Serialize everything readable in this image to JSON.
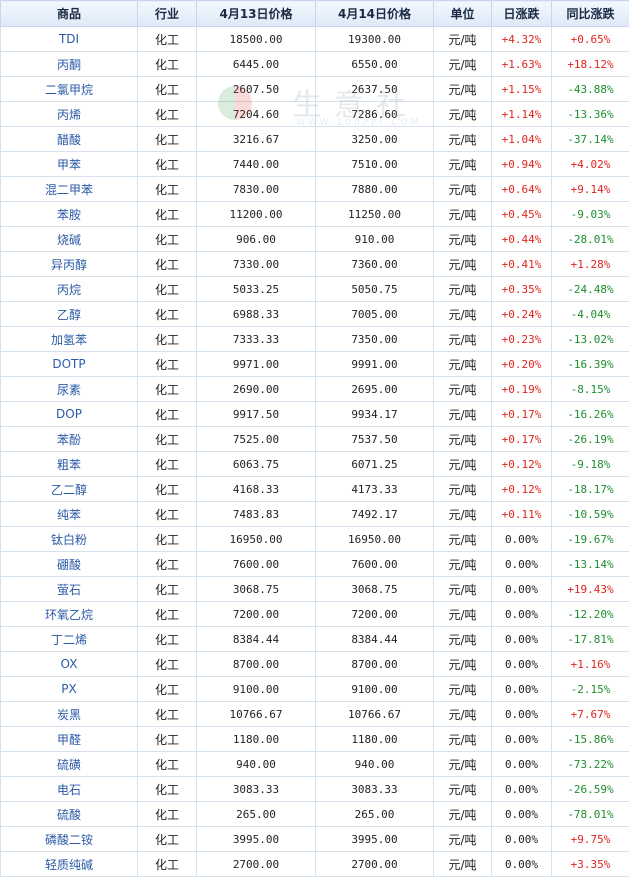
{
  "table": {
    "headers": [
      "商品",
      "行业",
      "4月13日价格",
      "4月14日价格",
      "单位",
      "日涨跌",
      "同比涨跌"
    ],
    "rows": [
      {
        "name": "TDI",
        "industry": "化工",
        "price_prev": "18500.00",
        "price_curr": "19300.00",
        "unit": "元/吨",
        "daily": "+4.32%",
        "yoy": "+0.65%"
      },
      {
        "name": "丙酮",
        "industry": "化工",
        "price_prev": "6445.00",
        "price_curr": "6550.00",
        "unit": "元/吨",
        "daily": "+1.63%",
        "yoy": "+18.12%"
      },
      {
        "name": "二氯甲烷",
        "industry": "化工",
        "price_prev": "2607.50",
        "price_curr": "2637.50",
        "unit": "元/吨",
        "daily": "+1.15%",
        "yoy": "-43.88%"
      },
      {
        "name": "丙烯",
        "industry": "化工",
        "price_prev": "7204.60",
        "price_curr": "7286.60",
        "unit": "元/吨",
        "daily": "+1.14%",
        "yoy": "-13.36%"
      },
      {
        "name": "醋酸",
        "industry": "化工",
        "price_prev": "3216.67",
        "price_curr": "3250.00",
        "unit": "元/吨",
        "daily": "+1.04%",
        "yoy": "-37.14%"
      },
      {
        "name": "甲苯",
        "industry": "化工",
        "price_prev": "7440.00",
        "price_curr": "7510.00",
        "unit": "元/吨",
        "daily": "+0.94%",
        "yoy": "+4.02%"
      },
      {
        "name": "混二甲苯",
        "industry": "化工",
        "price_prev": "7830.00",
        "price_curr": "7880.00",
        "unit": "元/吨",
        "daily": "+0.64%",
        "yoy": "+9.14%"
      },
      {
        "name": "苯胺",
        "industry": "化工",
        "price_prev": "11200.00",
        "price_curr": "11250.00",
        "unit": "元/吨",
        "daily": "+0.45%",
        "yoy": "-9.03%"
      },
      {
        "name": "烧碱",
        "industry": "化工",
        "price_prev": "906.00",
        "price_curr": "910.00",
        "unit": "元/吨",
        "daily": "+0.44%",
        "yoy": "-28.01%"
      },
      {
        "name": "异丙醇",
        "industry": "化工",
        "price_prev": "7330.00",
        "price_curr": "7360.00",
        "unit": "元/吨",
        "daily": "+0.41%",
        "yoy": "+1.28%"
      },
      {
        "name": "丙烷",
        "industry": "化工",
        "price_prev": "5033.25",
        "price_curr": "5050.75",
        "unit": "元/吨",
        "daily": "+0.35%",
        "yoy": "-24.48%"
      },
      {
        "name": "乙醇",
        "industry": "化工",
        "price_prev": "6988.33",
        "price_curr": "7005.00",
        "unit": "元/吨",
        "daily": "+0.24%",
        "yoy": "-4.04%"
      },
      {
        "name": "加氢苯",
        "industry": "化工",
        "price_prev": "7333.33",
        "price_curr": "7350.00",
        "unit": "元/吨",
        "daily": "+0.23%",
        "yoy": "-13.02%"
      },
      {
        "name": "DOTP",
        "industry": "化工",
        "price_prev": "9971.00",
        "price_curr": "9991.00",
        "unit": "元/吨",
        "daily": "+0.20%",
        "yoy": "-16.39%"
      },
      {
        "name": "尿素",
        "industry": "化工",
        "price_prev": "2690.00",
        "price_curr": "2695.00",
        "unit": "元/吨",
        "daily": "+0.19%",
        "yoy": "-8.15%"
      },
      {
        "name": "DOP",
        "industry": "化工",
        "price_prev": "9917.50",
        "price_curr": "9934.17",
        "unit": "元/吨",
        "daily": "+0.17%",
        "yoy": "-16.26%"
      },
      {
        "name": "苯酚",
        "industry": "化工",
        "price_prev": "7525.00",
        "price_curr": "7537.50",
        "unit": "元/吨",
        "daily": "+0.17%",
        "yoy": "-26.19%"
      },
      {
        "name": "粗苯",
        "industry": "化工",
        "price_prev": "6063.75",
        "price_curr": "6071.25",
        "unit": "元/吨",
        "daily": "+0.12%",
        "yoy": "-9.18%"
      },
      {
        "name": "乙二醇",
        "industry": "化工",
        "price_prev": "4168.33",
        "price_curr": "4173.33",
        "unit": "元/吨",
        "daily": "+0.12%",
        "yoy": "-18.17%"
      },
      {
        "name": "纯苯",
        "industry": "化工",
        "price_prev": "7483.83",
        "price_curr": "7492.17",
        "unit": "元/吨",
        "daily": "+0.11%",
        "yoy": "-10.59%"
      },
      {
        "name": "钛白粉",
        "industry": "化工",
        "price_prev": "16950.00",
        "price_curr": "16950.00",
        "unit": "元/吨",
        "daily": "0.00%",
        "yoy": "-19.67%"
      },
      {
        "name": "硼酸",
        "industry": "化工",
        "price_prev": "7600.00",
        "price_curr": "7600.00",
        "unit": "元/吨",
        "daily": "0.00%",
        "yoy": "-13.14%"
      },
      {
        "name": "萤石",
        "industry": "化工",
        "price_prev": "3068.75",
        "price_curr": "3068.75",
        "unit": "元/吨",
        "daily": "0.00%",
        "yoy": "+19.43%"
      },
      {
        "name": "环氧乙烷",
        "industry": "化工",
        "price_prev": "7200.00",
        "price_curr": "7200.00",
        "unit": "元/吨",
        "daily": "0.00%",
        "yoy": "-12.20%"
      },
      {
        "name": "丁二烯",
        "industry": "化工",
        "price_prev": "8384.44",
        "price_curr": "8384.44",
        "unit": "元/吨",
        "daily": "0.00%",
        "yoy": "-17.81%"
      },
      {
        "name": "OX",
        "industry": "化工",
        "price_prev": "8700.00",
        "price_curr": "8700.00",
        "unit": "元/吨",
        "daily": "0.00%",
        "yoy": "+1.16%"
      },
      {
        "name": "PX",
        "industry": "化工",
        "price_prev": "9100.00",
        "price_curr": "9100.00",
        "unit": "元/吨",
        "daily": "0.00%",
        "yoy": "-2.15%"
      },
      {
        "name": "炭黑",
        "industry": "化工",
        "price_prev": "10766.67",
        "price_curr": "10766.67",
        "unit": "元/吨",
        "daily": "0.00%",
        "yoy": "+7.67%"
      },
      {
        "name": "甲醛",
        "industry": "化工",
        "price_prev": "1180.00",
        "price_curr": "1180.00",
        "unit": "元/吨",
        "daily": "0.00%",
        "yoy": "-15.86%"
      },
      {
        "name": "硫磺",
        "industry": "化工",
        "price_prev": "940.00",
        "price_curr": "940.00",
        "unit": "元/吨",
        "daily": "0.00%",
        "yoy": "-73.22%"
      },
      {
        "name": "电石",
        "industry": "化工",
        "price_prev": "3083.33",
        "price_curr": "3083.33",
        "unit": "元/吨",
        "daily": "0.00%",
        "yoy": "-26.59%"
      },
      {
        "name": "硫酸",
        "industry": "化工",
        "price_prev": "265.00",
        "price_curr": "265.00",
        "unit": "元/吨",
        "daily": "0.00%",
        "yoy": "-78.01%"
      },
      {
        "name": "磷酸二铵",
        "industry": "化工",
        "price_prev": "3995.00",
        "price_curr": "3995.00",
        "unit": "元/吨",
        "daily": "0.00%",
        "yoy": "+9.75%"
      },
      {
        "name": "轻质纯碱",
        "industry": "化工",
        "price_prev": "2700.00",
        "price_curr": "2700.00",
        "unit": "元/吨",
        "daily": "0.00%",
        "yoy": "+3.35%"
      }
    ]
  },
  "watermark": {
    "brand": "生意社",
    "url": "WWW.100PPI.COM"
  },
  "colors": {
    "up": "#e0241e",
    "down": "#1e8e2e",
    "header_bg": "#dde9f6",
    "name_link": "#2b5aa6"
  }
}
